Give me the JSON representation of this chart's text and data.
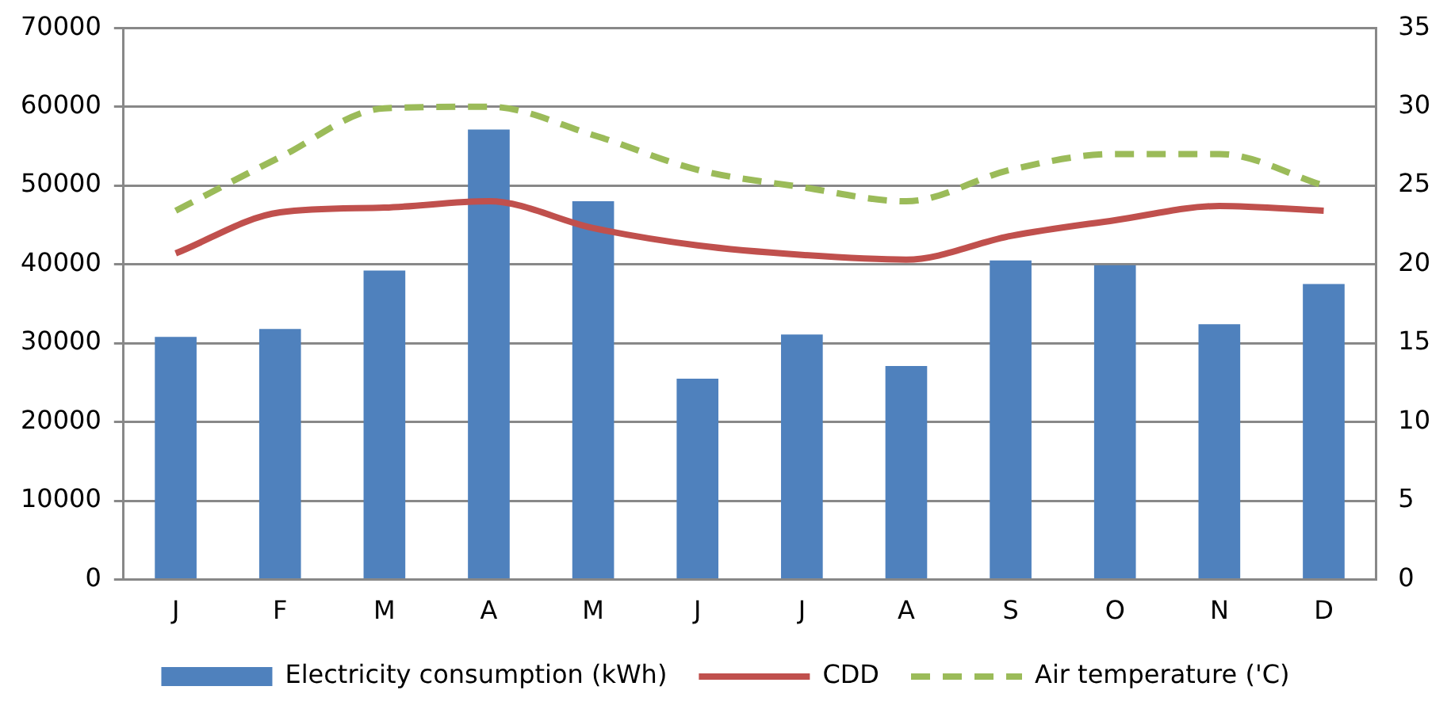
{
  "chart_data": {
    "type": "bar",
    "categories": [
      "J",
      "F",
      "M",
      "A",
      "M",
      "J",
      "J",
      "A",
      "S",
      "O",
      "N",
      "D"
    ],
    "series": [
      {
        "name": "Electricity consumption (kWh)",
        "color": "#4f81bd",
        "values": [
          30800,
          31800,
          39200,
          57100,
          48000,
          25500,
          31100,
          27100,
          40500,
          39900,
          32400,
          37500
        ]
      },
      {
        "name": "CDD",
        "type": "line",
        "axis": "y2",
        "color": "#c0504d",
        "values": [
          20.7,
          23.3,
          23.6,
          24.0,
          22.3,
          21.2,
          20.6,
          20.3,
          21.8,
          22.8,
          23.7,
          23.4
        ]
      },
      {
        "name": "Air temperature ('C)",
        "type": "line",
        "axis": "y2",
        "color": "#9bbb59",
        "line_style": "dashed",
        "values": [
          23.4,
          26.8,
          29.9,
          30,
          28.2,
          26,
          24.9,
          24,
          26,
          27,
          27,
          25
        ]
      }
    ],
    "ylim": [
      0,
      70000
    ],
    "yticks": [
      0,
      10000,
      20000,
      30000,
      40000,
      50000,
      60000,
      70000
    ],
    "y2lim": [
      0,
      35
    ],
    "y2ticks": [
      0,
      5,
      10,
      15,
      20,
      25,
      30,
      35
    ],
    "grid": "y",
    "legend": "bottom",
    "marker": "none"
  }
}
